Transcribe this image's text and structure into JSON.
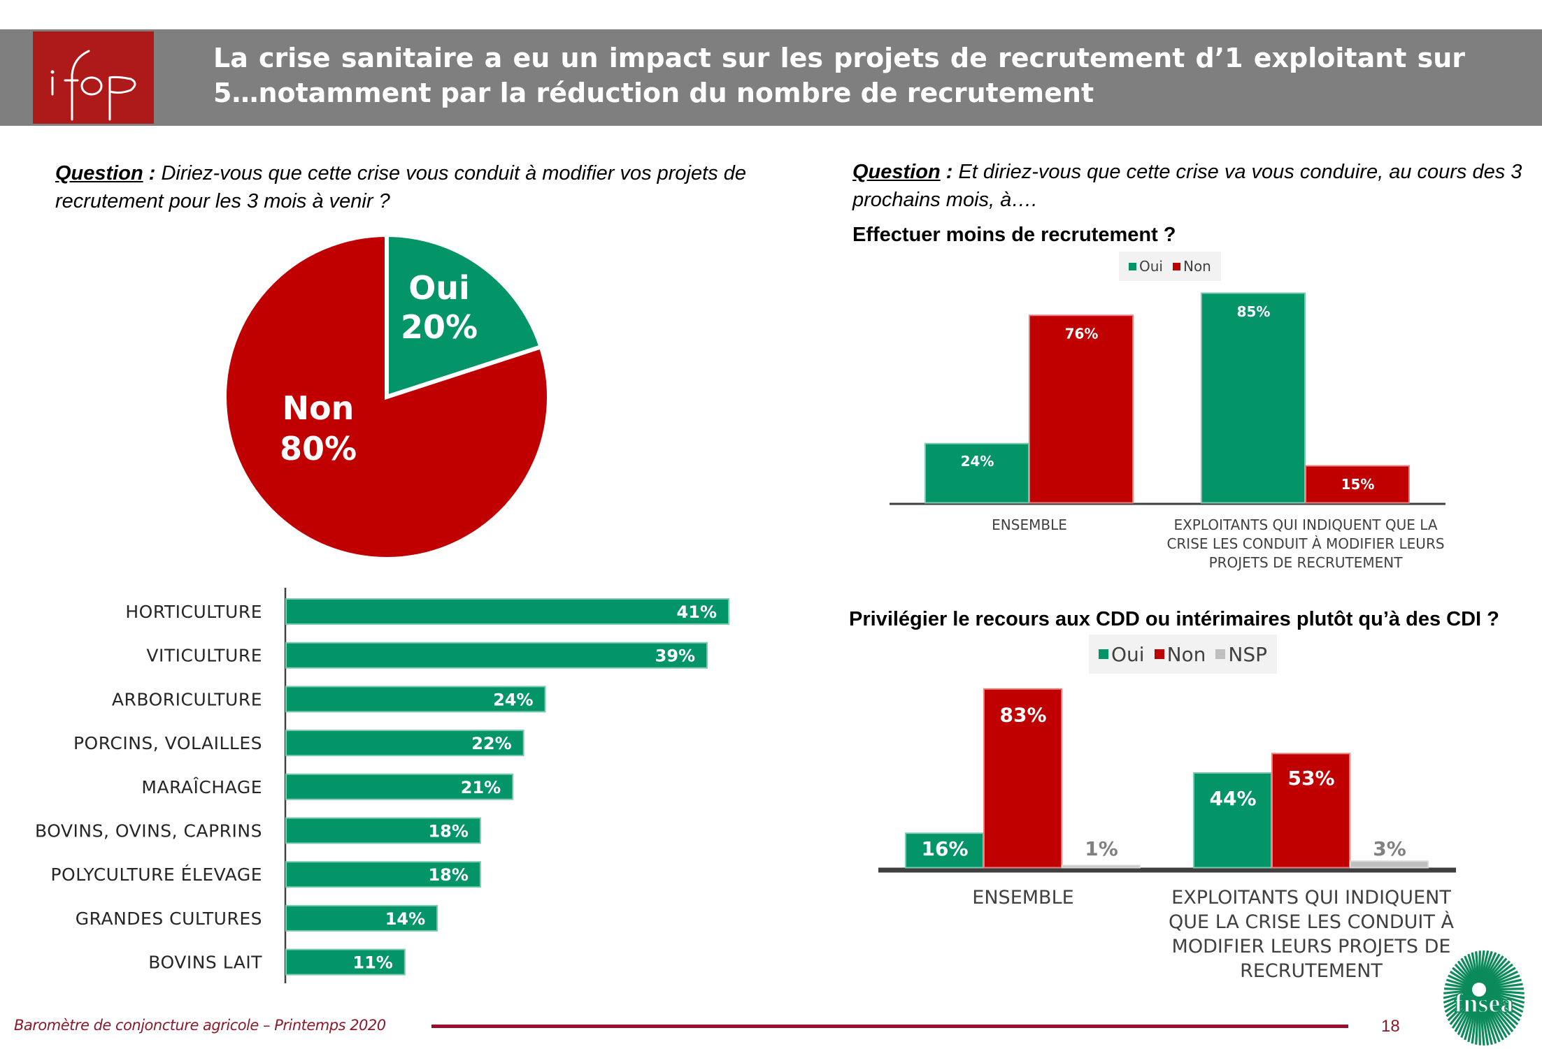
{
  "header": {
    "title": "La crise sanitaire a eu un impact sur les projets de recrutement d’1 exploitant sur 5…notamment par la réduction du nombre de recrutement",
    "logo": "ifop"
  },
  "left": {
    "question_label": "Question",
    "question_colon": " :",
    "question_text": " Diriez-vous que cette crise vous conduit à modifier vos projets de recrutement pour les 3 mois à venir ?"
  },
  "right": {
    "question_label": "Question",
    "question_colon": " :",
    "question_text": " Et diriez-vous que cette crise va vous conduire, au cours des 3 prochains mois, à….",
    "subquestion1": "Effectuer moins de recrutement ?",
    "subquestion2": "Privilégier le recours aux CDD ou intérimaires plutôt qu’à des CDI ?"
  },
  "legend1": [
    {
      "label": "Oui",
      "color": "#039467"
    },
    {
      "label": "Non",
      "color": "#c00000"
    }
  ],
  "legend2": [
    {
      "label": "Oui",
      "color": "#039467"
    },
    {
      "label": "Non",
      "color": "#c00000"
    },
    {
      "label": "NSP",
      "color": "#bfbfbf"
    }
  ],
  "colors": {
    "green": "#039467",
    "green_border": "#7ccab0",
    "red": "#c00000",
    "red_border": "#e88080",
    "gray": "#bfbfbf",
    "header_gray": "#7f7f7f",
    "ifop_red": "#ae1a1a",
    "footer_red": "#9b0e2a"
  },
  "chart_data": [
    {
      "type": "pie",
      "title": "Diriez-vous que cette crise vous conduit à modifier vos projets de recrutement pour les 3 mois à venir ?",
      "slices": [
        {
          "label": "Oui",
          "value": 20,
          "display": "20%",
          "color": "#039467"
        },
        {
          "label": "Non",
          "value": 80,
          "display": "80%",
          "color": "#c00000"
        }
      ]
    },
    {
      "type": "bar",
      "orientation": "horizontal",
      "title": "Part répondant Oui par filière",
      "categories": [
        "HORTICULTURE",
        "VITICULTURE",
        "ARBORICULTURE",
        "PORCINS, VOLAILLES",
        "MARAÎCHAGE",
        "BOVINS, OVINS, CAPRINS",
        "POLYCULTURE ÉLEVAGE",
        "GRANDES CULTURES",
        "BOVINS LAIT"
      ],
      "values": [
        41,
        39,
        24,
        22,
        21,
        18,
        18,
        14,
        11
      ],
      "labels": [
        "41%",
        "39%",
        "24%",
        "22%",
        "21%",
        "18%",
        "18%",
        "14%",
        "11%"
      ],
      "xlim": [
        0,
        41
      ],
      "grid": false
    },
    {
      "type": "bar",
      "title": "Effectuer moins de recrutement ?",
      "categories": [
        "ENSEMBLE",
        "EXPLOITANTS QUI INDIQUENT QUE LA CRISE LES CONDUIT À MODIFIER LEURS PROJETS DE RECRUTEMENT"
      ],
      "category_lines": [
        [
          "ENSEMBLE"
        ],
        [
          "EXPLOITANTS QUI INDIQUENT QUE LA",
          "CRISE LES CONDUIT À MODIFIER LEURS",
          "PROJETS DE RECRUTEMENT"
        ]
      ],
      "series": [
        {
          "name": "Oui",
          "values": [
            24,
            85
          ],
          "labels": [
            "24%",
            "85%"
          ]
        },
        {
          "name": "Non",
          "values": [
            76,
            15
          ],
          "labels": [
            "76%",
            "15%"
          ]
        }
      ],
      "ylim": [
        0,
        100
      ],
      "legend": "top",
      "grid": false
    },
    {
      "type": "bar",
      "title": "Privilégier le recours aux CDD ou intérimaires plutôt qu’à des CDI ?",
      "categories": [
        "ENSEMBLE",
        "EXPLOITANTS QUI INDIQUENT QUE LA CRISE LES CONDUIT À MODIFIER LEURS PROJETS DE RECRUTEMENT"
      ],
      "category_lines": [
        [
          "ENSEMBLE"
        ],
        [
          "EXPLOITANTS QUI INDIQUENT",
          "QUE LA CRISE LES CONDUIT À",
          "MODIFIER LEURS PROJETS DE",
          "RECRUTEMENT"
        ]
      ],
      "series": [
        {
          "name": "Oui",
          "values": [
            16,
            44
          ],
          "labels": [
            "16%",
            "44%"
          ]
        },
        {
          "name": "Non",
          "values": [
            83,
            53
          ],
          "labels": [
            "83%",
            "53%"
          ]
        },
        {
          "name": "NSP",
          "values": [
            1,
            3
          ],
          "labels": [
            "1%",
            "3%"
          ]
        }
      ],
      "ylim": [
        0,
        100
      ],
      "legend": "top",
      "grid": false
    }
  ],
  "footer": {
    "text": "Baromètre de conjoncture agricole – Printemps 2020",
    "page_number": "18",
    "logo": "fnsea"
  }
}
